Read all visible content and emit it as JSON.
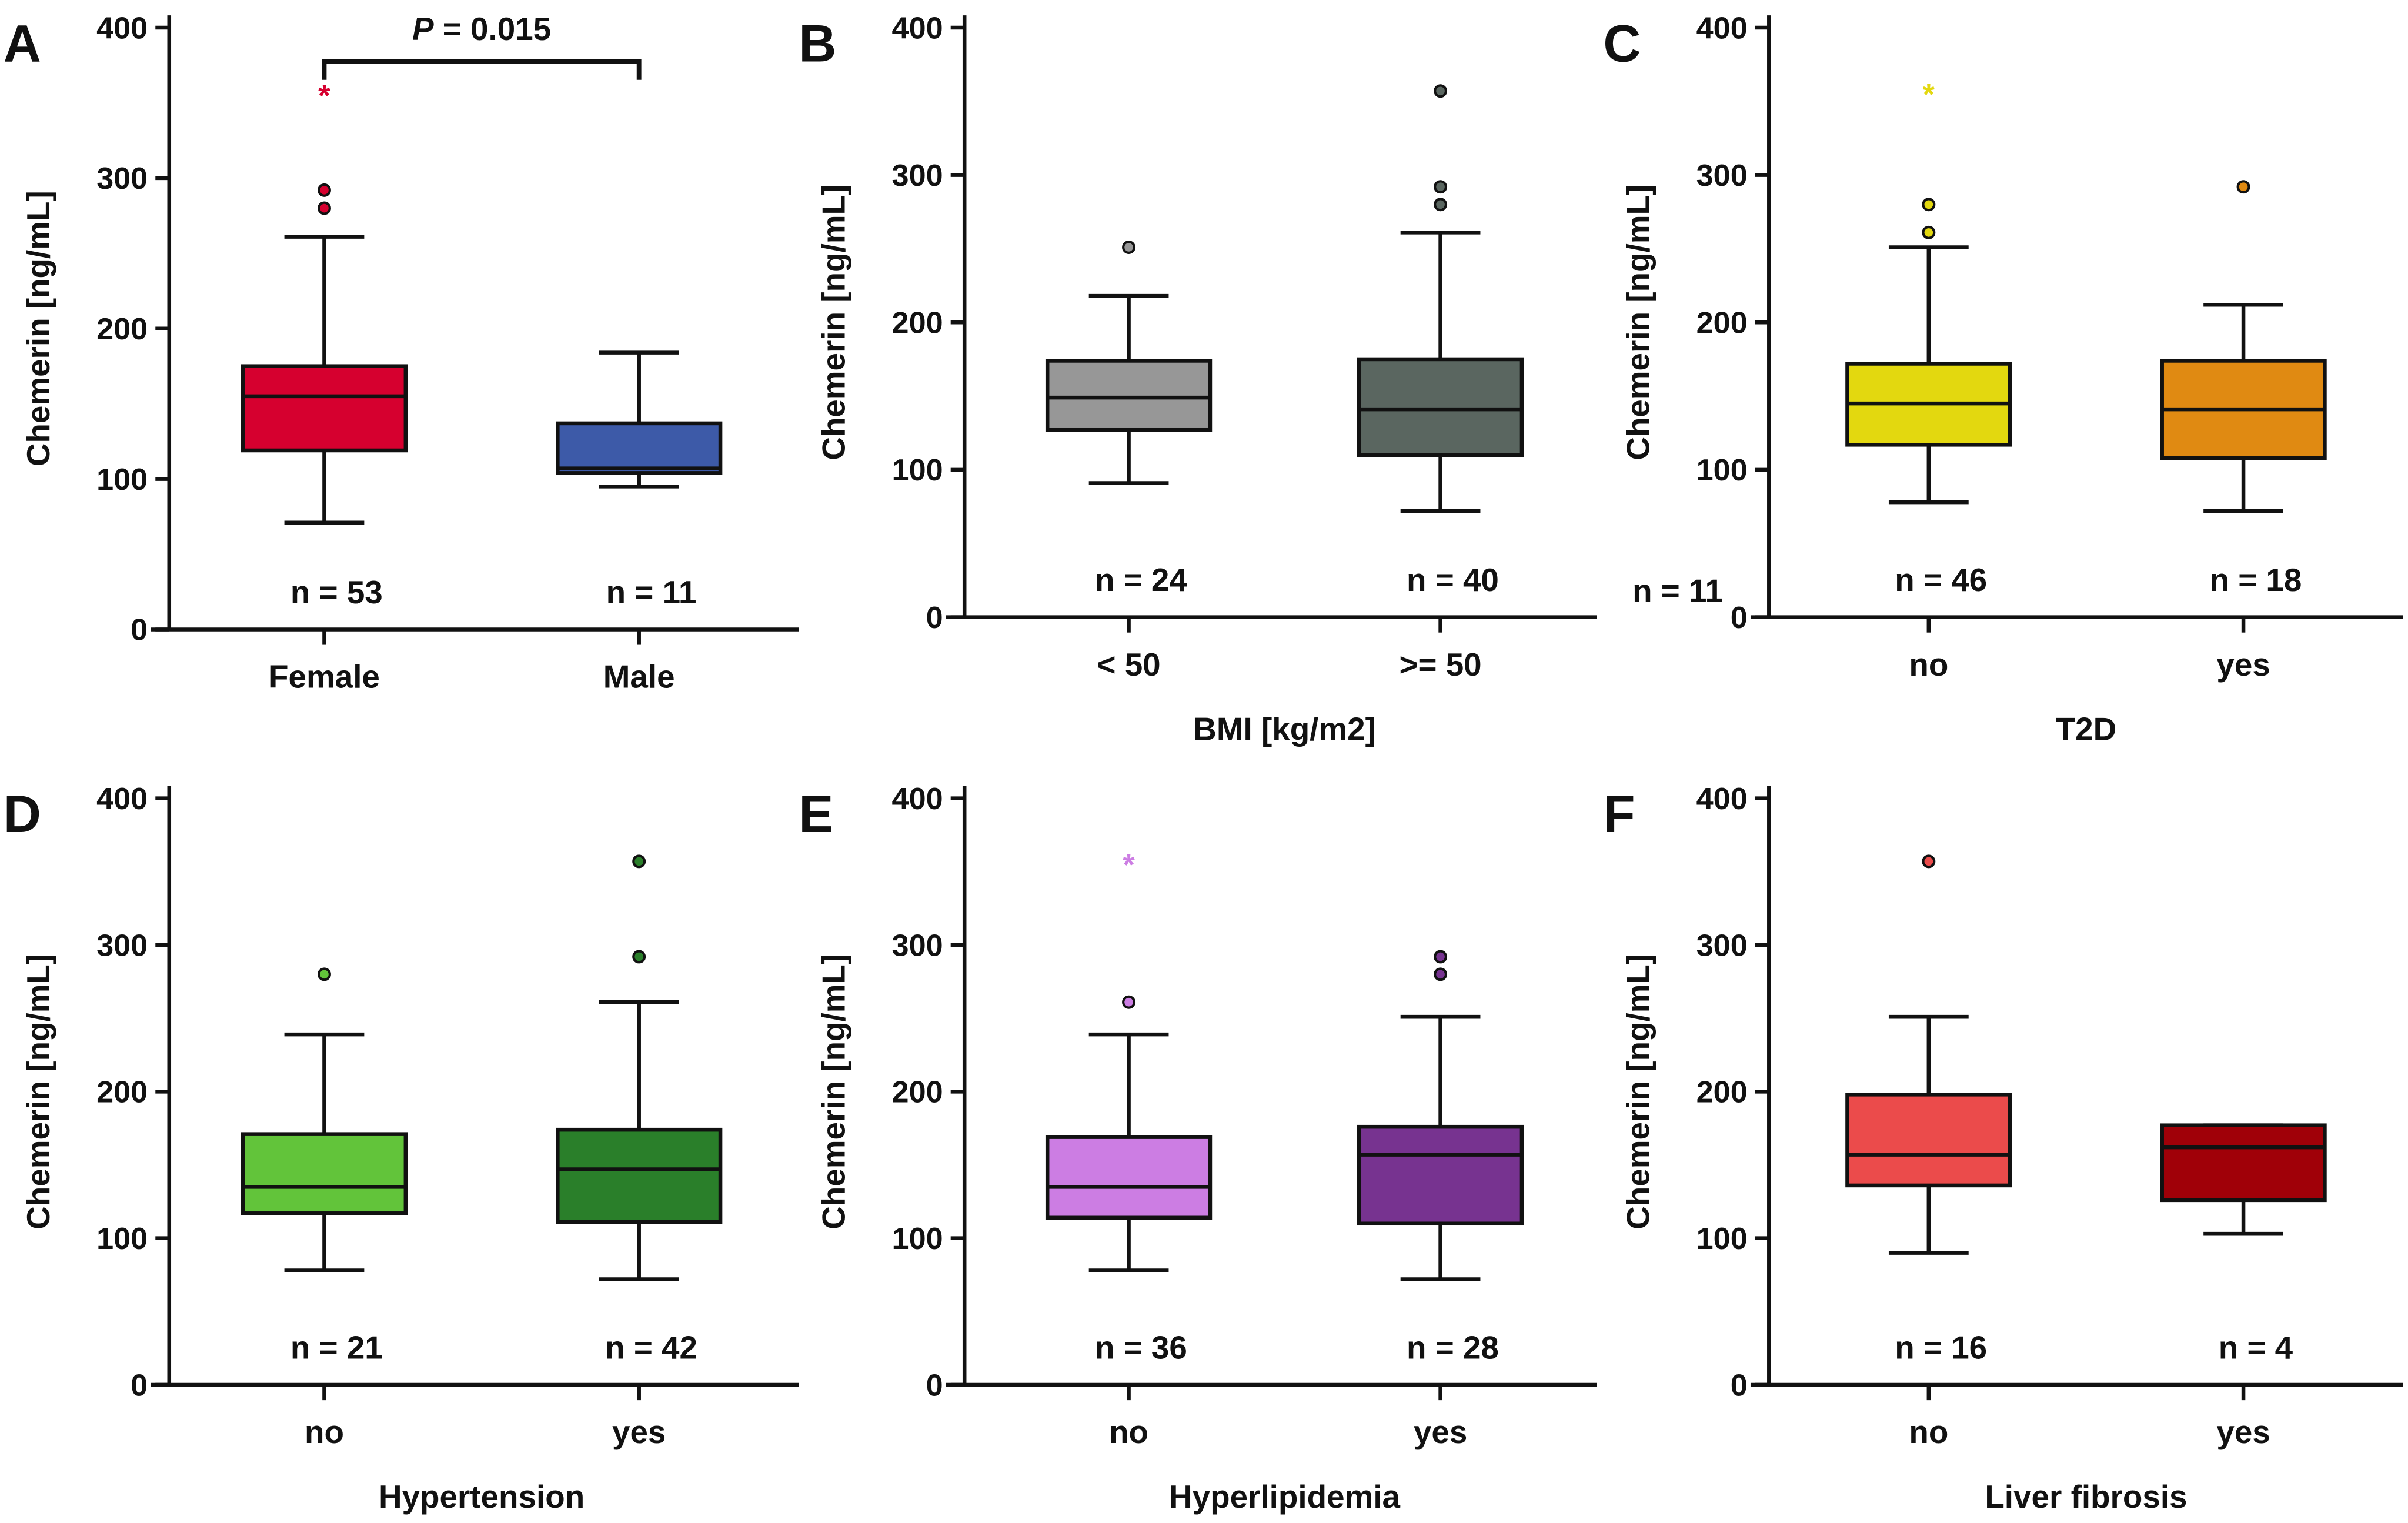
{
  "chart_data": [
    {
      "type": "box",
      "panel": "A",
      "ylabel": "Chemerin [ng/mL]",
      "xlabel": "",
      "ylim": [
        0,
        400
      ],
      "yticks": [
        0,
        100,
        200,
        300,
        400
      ],
      "annotation": {
        "text_italic": "P",
        "text": " = 0.015"
      },
      "groups": [
        {
          "label": "Female",
          "n": "n = 53",
          "color": "#d6002f",
          "whisker_low": 71,
          "q1": 119,
          "median": 155,
          "q3": 175,
          "whisker_high": 261,
          "outliers": [
            280,
            292
          ],
          "extremes": [
            357
          ]
        },
        {
          "label": "Male",
          "n": "n = 11",
          "color": "#3d5aa8",
          "whisker_low": 95,
          "q1": 104,
          "median": 107,
          "q3": 137,
          "whisker_high": 184,
          "outliers": [],
          "extremes": []
        }
      ]
    },
    {
      "type": "box",
      "panel": "B",
      "ylabel": "Chemerin [ng/mL]",
      "xlabel": "BMI [kg/m2]",
      "ylim": [
        0,
        400
      ],
      "yticks": [
        0,
        100,
        200,
        300,
        400
      ],
      "groups": [
        {
          "label": "< 50",
          "n": "n = 24",
          "color": "#979797",
          "whisker_low": 91,
          "q1": 127,
          "median": 149,
          "q3": 174,
          "whisker_high": 218,
          "outliers": [
            251
          ],
          "extremes": []
        },
        {
          "label": ">= 50",
          "n": "n = 40",
          "color": "#5a6660",
          "whisker_low": 72,
          "q1": 110,
          "median": 141,
          "q3": 175,
          "whisker_high": 261,
          "outliers": [
            280,
            292,
            357
          ],
          "extremes": []
        }
      ]
    },
    {
      "type": "box",
      "panel": "C",
      "ylabel": "Chemerin [ng/mL]",
      "xlabel": "T2D",
      "ylim": [
        0,
        400
      ],
      "yticks": [
        0,
        100,
        200,
        300,
        400
      ],
      "stray_label": "n = 11",
      "groups": [
        {
          "label": "no",
          "n": "n = 46",
          "color": "#e3d80f",
          "whisker_low": 78,
          "q1": 117,
          "median": 145,
          "q3": 172,
          "whisker_high": 251,
          "outliers": [
            261,
            280
          ],
          "extremes": [
            357
          ]
        },
        {
          "label": "yes",
          "n": "n = 18",
          "color": "#e08a12",
          "whisker_low": 72,
          "q1": 108,
          "median": 141,
          "q3": 174,
          "whisker_high": 212,
          "outliers": [
            292
          ],
          "extremes": []
        }
      ]
    },
    {
      "type": "box",
      "panel": "D",
      "ylabel": "Chemerin [ng/mL]",
      "xlabel": "Hypertension",
      "ylim": [
        0,
        400
      ],
      "yticks": [
        0,
        100,
        200,
        300,
        400
      ],
      "groups": [
        {
          "label": "no",
          "n": "n = 21",
          "color": "#62c43a",
          "whisker_low": 78,
          "q1": 117,
          "median": 135,
          "q3": 171,
          "whisker_high": 239,
          "outliers": [
            280
          ],
          "extremes": []
        },
        {
          "label": "yes",
          "n": "n = 42",
          "color": "#2a7f2a",
          "whisker_low": 72,
          "q1": 111,
          "median": 147,
          "q3": 174,
          "whisker_high": 261,
          "outliers": [
            292,
            357
          ],
          "extremes": []
        }
      ]
    },
    {
      "type": "box",
      "panel": "E",
      "ylabel": "Chemerin [ng/mL]",
      "xlabel": "Hyperlipidemia",
      "ylim": [
        0,
        400
      ],
      "yticks": [
        0,
        100,
        200,
        300,
        400
      ],
      "groups": [
        {
          "label": "no",
          "n": "n = 36",
          "color": "#cc7de3",
          "whisker_low": 78,
          "q1": 114,
          "median": 135,
          "q3": 169,
          "whisker_high": 239,
          "outliers": [
            261
          ],
          "extremes": [
            357
          ]
        },
        {
          "label": "yes",
          "n": "n = 28",
          "color": "#773390",
          "whisker_low": 72,
          "q1": 110,
          "median": 157,
          "q3": 176,
          "whisker_high": 251,
          "outliers": [
            280,
            292
          ],
          "extremes": []
        }
      ]
    },
    {
      "type": "box",
      "panel": "F",
      "ylabel": "Chemerin [ng/mL]",
      "xlabel": "Liver fibrosis",
      "ylim": [
        0,
        400
      ],
      "yticks": [
        0,
        100,
        200,
        300,
        400
      ],
      "groups": [
        {
          "label": "no",
          "n": "n = 16",
          "color": "#eb4b4b",
          "whisker_low": 90,
          "q1": 136,
          "median": 157,
          "q3": 198,
          "whisker_high": 251,
          "outliers": [
            357
          ],
          "extremes": []
        },
        {
          "label": "yes",
          "n": "n = 4",
          "color": "#a00008",
          "whisker_low": 103,
          "q1": 126,
          "median": 162,
          "q3": 177,
          "whisker_high": 177,
          "outliers": [],
          "extremes": []
        }
      ]
    }
  ]
}
